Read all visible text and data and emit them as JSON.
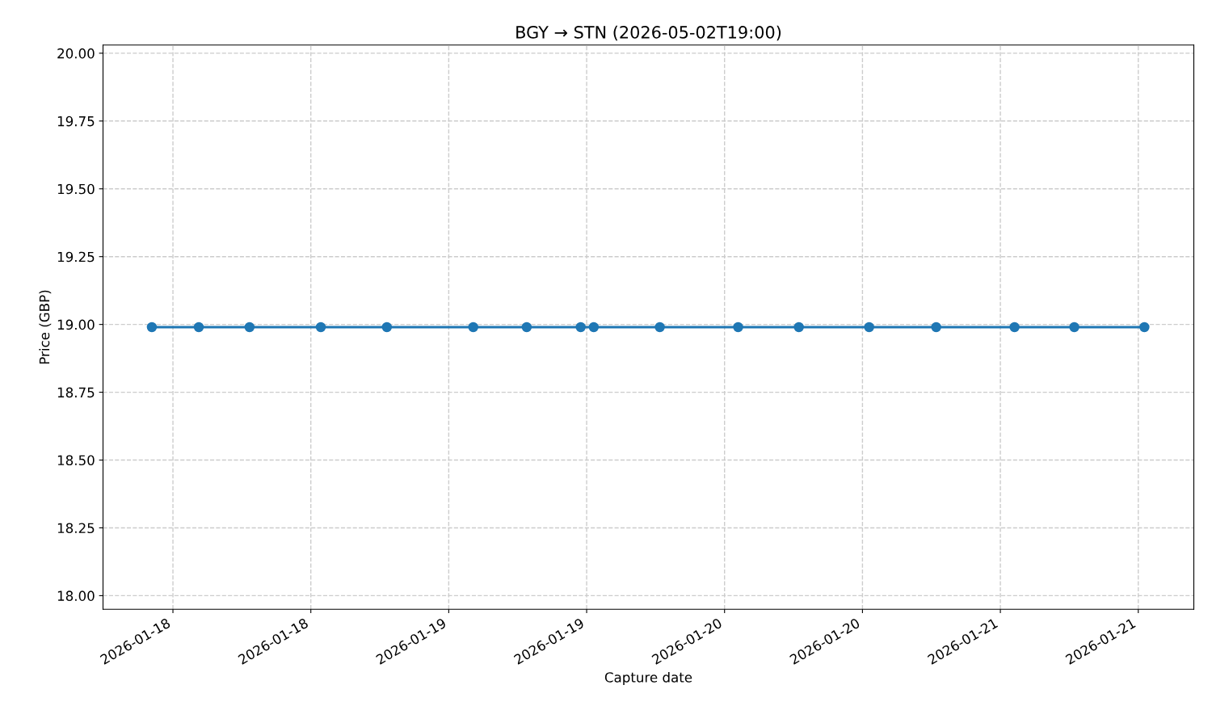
{
  "chart_data": {
    "type": "line",
    "title": "BGY → STN (2026-05-02T19:00)",
    "xlabel": "Capture date",
    "ylabel": "Price (GBP)",
    "x": [
      "2026-01-17T22:10",
      "2026-01-18T02:15",
      "2026-01-18T06:40",
      "2026-01-18T12:52",
      "2026-01-18T18:37",
      "2026-01-19T02:08",
      "2026-01-19T06:47",
      "2026-01-19T11:29",
      "2026-01-19T12:37",
      "2026-01-19T18:22",
      "2026-01-20T01:11",
      "2026-01-20T06:28",
      "2026-01-20T12:35",
      "2026-01-20T18:25",
      "2026-01-21T01:14",
      "2026-01-21T06:26",
      "2026-01-21T12:32"
    ],
    "series": [
      {
        "color": "#1f77b4",
        "values": [
          18.99,
          18.99,
          18.99,
          18.99,
          18.99,
          18.99,
          18.99,
          18.99,
          18.99,
          18.99,
          18.99,
          18.99,
          18.99,
          18.99,
          18.99,
          18.99,
          18.99
        ]
      }
    ],
    "xlim": [
      "2026-01-17T17:55",
      "2026-01-21T16:50"
    ],
    "xticks": [
      {
        "value": "2026-01-18T00:00",
        "label": "2026-01-18"
      },
      {
        "value": "2026-01-18T12:00",
        "label": "2026-01-18"
      },
      {
        "value": "2026-01-19T00:00",
        "label": "2026-01-19"
      },
      {
        "value": "2026-01-19T12:00",
        "label": "2026-01-19"
      },
      {
        "value": "2026-01-20T00:00",
        "label": "2026-01-20"
      },
      {
        "value": "2026-01-20T12:00",
        "label": "2026-01-20"
      },
      {
        "value": "2026-01-21T00:00",
        "label": "2026-01-21"
      },
      {
        "value": "2026-01-21T12:00",
        "label": "2026-01-21"
      }
    ],
    "ylim": [
      17.95,
      20.03
    ],
    "yticks": [
      {
        "value": 18,
        "label": "18.00"
      },
      {
        "value": 18.25,
        "label": "18.25"
      },
      {
        "value": 18.5,
        "label": "18.50"
      },
      {
        "value": 18.75,
        "label": "18.75"
      },
      {
        "value": 19,
        "label": "19.00"
      },
      {
        "value": 19.25,
        "label": "19.25"
      },
      {
        "value": 19.5,
        "label": "19.50"
      },
      {
        "value": 19.75,
        "label": "19.75"
      },
      {
        "value": 20,
        "label": "20.00"
      }
    ],
    "grid": true,
    "marker": "circle",
    "line_style": "solid"
  }
}
